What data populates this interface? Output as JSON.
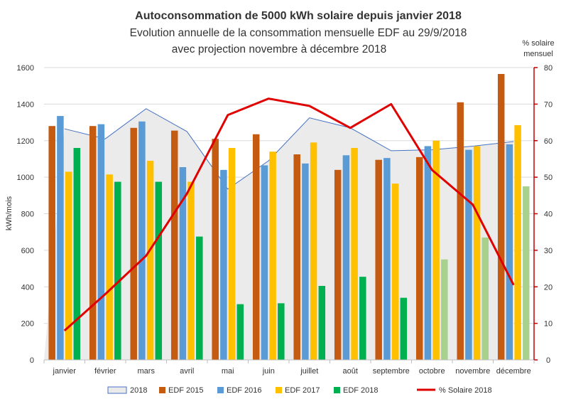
{
  "chart_data": {
    "type": "bar",
    "title": "Autoconsommation de 5000 kWh solaire depuis janvier 2018",
    "subtitle_line1": "Evolution annuelle de la consommation mensuelle EDF au 29/9/2018",
    "subtitle_line2": "avec projection novembre à décembre 2018",
    "ylabel": "kWh/mois",
    "y2label_line1": "% solaire",
    "y2label_line2": "mensuel",
    "ylim": [
      0,
      1600
    ],
    "y2lim": [
      0,
      80
    ],
    "yticks": [
      "0",
      "200",
      "400",
      "600",
      "800",
      "1000",
      "1200",
      "1400",
      "1600"
    ],
    "y2ticks": [
      "0",
      "10",
      "20",
      "30",
      "40",
      "50",
      "60",
      "70",
      "80"
    ],
    "categories": [
      "janvier",
      "février",
      "mars",
      "avril",
      "mai",
      "juin",
      "juillet",
      "août",
      "septembre",
      "octobre",
      "novembre",
      "décembre"
    ],
    "grid": true,
    "legend_position": "bottom",
    "area_series": {
      "name": "2018",
      "values": [
        1265,
        1210,
        1375,
        1250,
        935,
        1090,
        1325,
        1270,
        1145,
        1150,
        1170,
        1195
      ],
      "fill": "#ebebeb",
      "line": "#4472c4"
    },
    "series": [
      {
        "name": "EDF 2015",
        "color": "#c55a11",
        "values": [
          1280,
          1280,
          1270,
          1255,
          1210,
          1235,
          1125,
          1040,
          1095,
          1110,
          1410,
          1565
        ]
      },
      {
        "name": "EDF 2016",
        "color": "#5b9bd5",
        "values": [
          1335,
          1290,
          1305,
          1055,
          1040,
          1065,
          1075,
          1120,
          1105,
          1170,
          1150,
          1180
        ]
      },
      {
        "name": "EDF 2017",
        "color": "#ffc000",
        "values": [
          1030,
          1015,
          1090,
          975,
          1160,
          1140,
          1190,
          1160,
          965,
          1200,
          1170,
          1285
        ]
      },
      {
        "name": "EDF 2018",
        "color": "#00b050",
        "projected_color": "#a9d18e",
        "values": [
          1160,
          975,
          975,
          675,
          305,
          310,
          405,
          455,
          340,
          550,
          670,
          950
        ],
        "projected": [
          false,
          false,
          false,
          false,
          false,
          false,
          false,
          false,
          false,
          true,
          true,
          true
        ]
      }
    ],
    "line_series": {
      "name": "% Solaire 2018",
      "color": "#e00000",
      "axis": "y2",
      "values": [
        8,
        18,
        28.5,
        45.5,
        67,
        71.5,
        69.5,
        63.5,
        70,
        52,
        42.5,
        20.5
      ]
    }
  }
}
